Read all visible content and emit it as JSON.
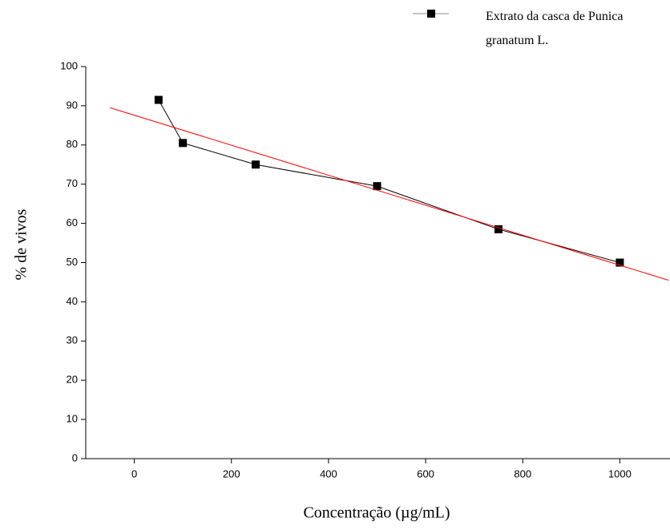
{
  "chart_data": {
    "type": "line",
    "xlabel": "Concentração (µg/mL)",
    "ylabel": "% de vivos",
    "x": [
      50,
      100,
      250,
      500,
      750,
      1000
    ],
    "series": [
      {
        "name": "Extrato da casca de Punica granatum L.",
        "color": "#000000",
        "values": [
          91.5,
          80.5,
          75,
          69.5,
          58.5,
          50
        ]
      }
    ],
    "trendline": {
      "x": [
        -50,
        1100
      ],
      "values": [
        89.5,
        45.5
      ],
      "color": "#ff0000"
    },
    "xlim": [
      -100,
      1100
    ],
    "xticks": [
      0,
      200,
      400,
      600,
      800,
      1000
    ],
    "ylim": [
      0,
      100
    ],
    "yticks": [
      0,
      10,
      20,
      30,
      40,
      50,
      60,
      70,
      80,
      90,
      100
    ]
  }
}
